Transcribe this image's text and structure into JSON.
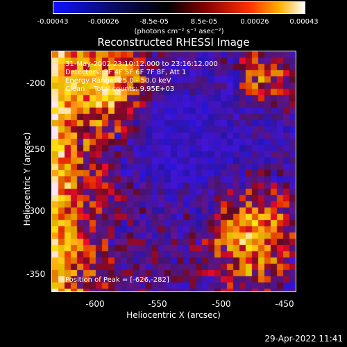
{
  "colorbar": {
    "tick_labels": [
      "-0.00043",
      "-0.00026",
      "-8.5e-05",
      "8.5e-05",
      "0.00026",
      "0.00043"
    ],
    "units": "(photons cm⁻² s⁻¹ asec⁻²)",
    "colors": [
      "#0000ff",
      "#000033",
      "#000000",
      "#7f0000",
      "#ff3000",
      "#ffc000",
      "#ffffff"
    ]
  },
  "plot": {
    "title": "Reconstructed RHESSI Image",
    "info_lines": [
      "31-May-2002 23:10:12.000 to 23:16:12.000",
      "Detectors: 3F 4F 5F 6F 7F 8F, Att 1",
      "Energy Range: 25.0 - 50.0 keV",
      "Clean    Total counts: 9.95E+03"
    ],
    "peak_label": "Position of Peak = [-626,-282]"
  },
  "axes": {
    "xlabel": "Heliocentric X (arcsec)",
    "ylabel": "Heliocentric Y (arcsec)",
    "x_ticks": [
      "-600",
      "-550",
      "-500",
      "-450"
    ],
    "y_ticks": [
      "-200",
      "-250",
      "-300",
      "-350"
    ]
  },
  "footer": {
    "timestamp": "29-Apr-2022 11:41"
  }
}
